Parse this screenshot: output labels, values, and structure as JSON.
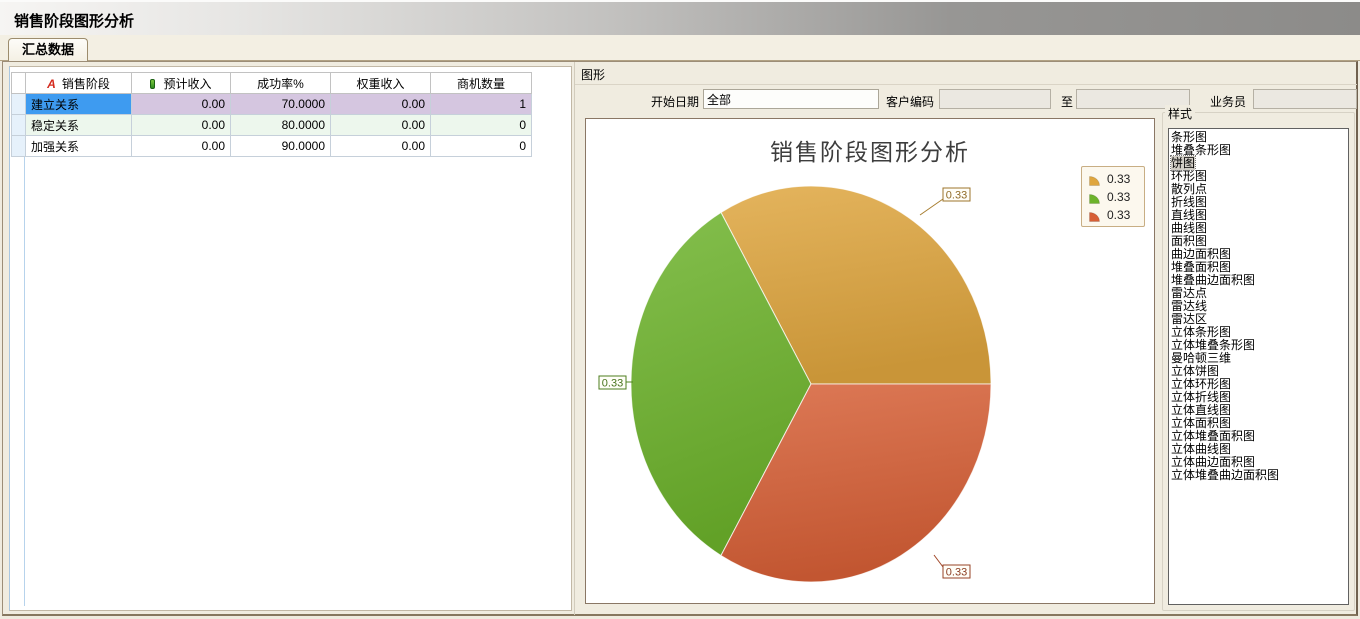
{
  "window": {
    "title": "销售阶段图形分析"
  },
  "tabs": [
    {
      "label": "汇总数据",
      "active": true
    }
  ],
  "grid": {
    "type_icons": {
      "text_icon_label": "A"
    },
    "columns": [
      "销售阶段",
      "预计收入",
      "成功率%",
      "权重收入",
      "商机数量"
    ],
    "rows": [
      {
        "stage": "建立关系",
        "expected_income": "0.00",
        "success_rate": "70.0000",
        "weighted_income": "0.00",
        "opportunity_count": "1"
      },
      {
        "stage": "稳定关系",
        "expected_income": "0.00",
        "success_rate": "80.0000",
        "weighted_income": "0.00",
        "opportunity_count": "0"
      },
      {
        "stage": "加强关系",
        "expected_income": "0.00",
        "success_rate": "90.0000",
        "weighted_income": "0.00",
        "opportunity_count": "0"
      }
    ],
    "selected_cell": "建立关系"
  },
  "graph_panel": {
    "caption": "图形",
    "filters": {
      "start_date_label": "开始日期",
      "start_date_value": "全部",
      "customer_code_label": "客户编码",
      "customer_code_value": "",
      "to_label": "至",
      "to_value": "",
      "salesperson_label": "业务员",
      "salesperson_value": ""
    }
  },
  "chart_data": {
    "type": "pie",
    "title": "销售阶段图形分析",
    "series": [
      {
        "value": 0.33,
        "color": "#dfa63e"
      },
      {
        "value": 0.33,
        "color": "#6db32b"
      },
      {
        "value": 0.33,
        "color": "#d75f36"
      }
    ],
    "slice_labels": [
      "0.33",
      "0.33",
      "0.33"
    ],
    "legend": [
      "0.33",
      "0.33",
      "0.33"
    ],
    "legend_position": "top-right"
  },
  "style_panel": {
    "caption": "样式",
    "selected": "饼图",
    "items": [
      "条形图",
      "堆叠条形图",
      "饼图",
      "环形图",
      "散列点",
      "折线图",
      "直线图",
      "曲线图",
      "面积图",
      "曲边面积图",
      "堆叠面积图",
      "堆叠曲边面积图",
      "雷达点",
      "雷达线",
      "雷达区",
      "立体条形图",
      "立体堆叠条形图",
      "曼哈顿三维",
      "立体饼图",
      "立体环形图",
      "立体折线图",
      "立体直线图",
      "立体面积图",
      "立体堆叠面积图",
      "立体曲线图",
      "立体曲边面积图",
      "立体堆叠曲边面积图"
    ]
  }
}
